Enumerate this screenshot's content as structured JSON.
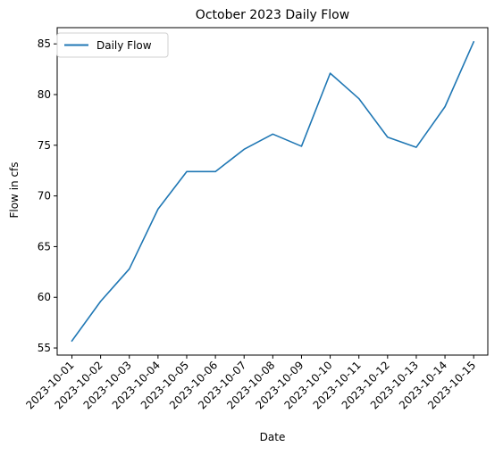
{
  "chart_data": {
    "type": "line",
    "title": "October 2023 Daily Flow",
    "xlabel": "Date",
    "ylabel": "Flow in cfs",
    "x": [
      "2023-10-01",
      "2023-10-02",
      "2023-10-03",
      "2023-10-04",
      "2023-10-05",
      "2023-10-06",
      "2023-10-07",
      "2023-10-08",
      "2023-10-09",
      "2023-10-10",
      "2023-10-11",
      "2023-10-12",
      "2023-10-13",
      "2023-10-14",
      "2023-10-15"
    ],
    "series": [
      {
        "name": "Daily Flow",
        "color": "#1f77b4",
        "values": [
          55.7,
          59.6,
          62.8,
          68.7,
          72.4,
          72.4,
          74.6,
          76.1,
          74.9,
          82.1,
          79.6,
          75.8,
          74.8,
          78.8,
          85.2
        ]
      }
    ],
    "ylim": [
      54.3,
      86.6
    ],
    "yticks": [
      55,
      60,
      65,
      70,
      75,
      80,
      85
    ],
    "grid": false,
    "legend": "upper left"
  }
}
